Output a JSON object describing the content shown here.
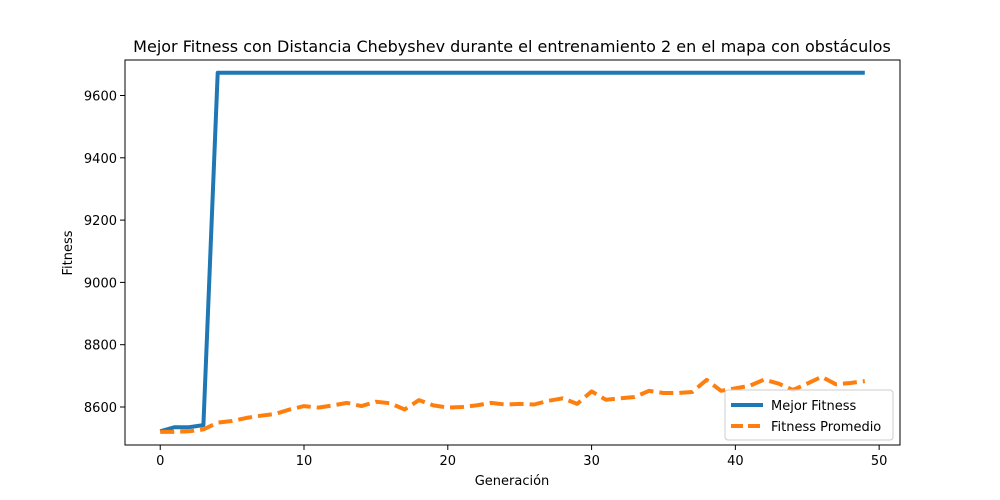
{
  "chart_data": {
    "type": "line",
    "title": "Mejor Fitness con Distancia Chebyshev durante el entrenamiento 2 en el mapa con obstáculos",
    "xlabel": "Generación",
    "ylabel": "Fitness",
    "xlim": [
      -2.45,
      51.45
    ],
    "ylim": [
      8478,
      9714
    ],
    "xticks": [
      0,
      10,
      20,
      30,
      40,
      50
    ],
    "yticks": [
      8600,
      8800,
      9000,
      9200,
      9400,
      9600
    ],
    "grid": false,
    "legend_position": "lower-right",
    "x": [
      0,
      1,
      2,
      3,
      4,
      5,
      6,
      7,
      8,
      9,
      10,
      11,
      12,
      13,
      14,
      15,
      16,
      17,
      18,
      19,
      20,
      21,
      22,
      23,
      24,
      25,
      26,
      27,
      28,
      29,
      30,
      31,
      32,
      33,
      34,
      35,
      36,
      37,
      38,
      39,
      40,
      41,
      42,
      43,
      44,
      45,
      46,
      47,
      48,
      49
    ],
    "series": [
      {
        "name": "Mejor Fitness",
        "color": "#1f77b4",
        "style": "solid",
        "values": [
          8522,
          8535,
          8535,
          8542,
          9673,
          9673,
          9673,
          9673,
          9673,
          9673,
          9673,
          9673,
          9673,
          9673,
          9673,
          9673,
          9673,
          9673,
          9673,
          9673,
          9673,
          9673,
          9673,
          9673,
          9673,
          9673,
          9673,
          9673,
          9673,
          9673,
          9673,
          9673,
          9673,
          9673,
          9673,
          9673,
          9673,
          9673,
          9673,
          9673,
          9673,
          9673,
          9673,
          9673,
          9673,
          9673,
          9673,
          9673,
          9673,
          9673
        ]
      },
      {
        "name": "Fitness Promedio",
        "color": "#ff7f0e",
        "style": "dashed",
        "values": [
          8520,
          8520,
          8522,
          8528,
          8550,
          8555,
          8565,
          8572,
          8578,
          8592,
          8603,
          8598,
          8605,
          8613,
          8603,
          8617,
          8612,
          8592,
          8622,
          8605,
          8598,
          8600,
          8605,
          8613,
          8608,
          8610,
          8608,
          8620,
          8628,
          8610,
          8650,
          8623,
          8628,
          8632,
          8652,
          8645,
          8645,
          8648,
          8687,
          8652,
          8660,
          8668,
          8688,
          8675,
          8655,
          8675,
          8697,
          8673,
          8677,
          8683
        ]
      }
    ]
  }
}
